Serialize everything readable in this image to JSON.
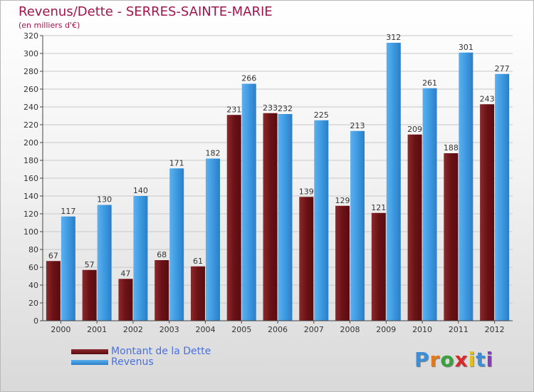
{
  "chart_data": {
    "type": "bar",
    "title": "Revenus/Dette - SERRES-SAINTE-MARIE",
    "subtitle": "(en milliers d'€)",
    "categories": [
      "2000",
      "2001",
      "2002",
      "2003",
      "2004",
      "2005",
      "2006",
      "2007",
      "2008",
      "2009",
      "2010",
      "2011",
      "2012"
    ],
    "series": [
      {
        "name": "Montant de la Dette",
        "values": [
          67,
          57,
          47,
          68,
          61,
          231,
          233,
          139,
          129,
          121,
          209,
          188,
          243
        ],
        "color": "#7a1a1e"
      },
      {
        "name": "Revenus",
        "values": [
          117,
          130,
          140,
          171,
          182,
          266,
          232,
          225,
          213,
          312,
          261,
          301,
          277
        ],
        "color": "#3e9ae0"
      }
    ],
    "ylim": [
      0,
      320
    ],
    "yticks": [
      0,
      20,
      40,
      60,
      80,
      100,
      120,
      140,
      160,
      180,
      200,
      220,
      240,
      260,
      280,
      300,
      320
    ],
    "grid": true,
    "legend": "bottom-left"
  },
  "logo": {
    "letters": [
      "P",
      "r",
      "o",
      "x",
      "i",
      "t",
      "i"
    ],
    "colors": [
      "#3a8fd8",
      "#e07a1f",
      "#3aa040",
      "#d82a2a",
      "#e0c020",
      "#3a8fd8",
      "#8a3ac0"
    ]
  }
}
